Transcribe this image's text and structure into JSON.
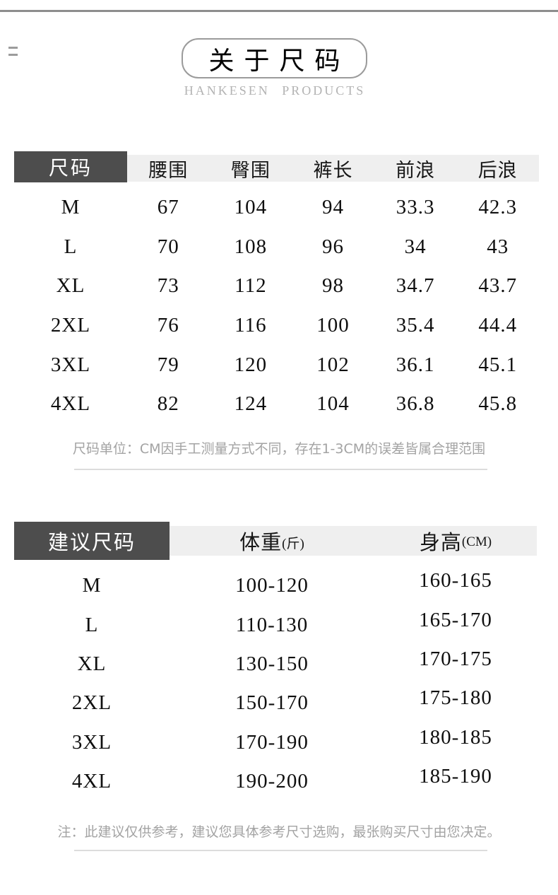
{
  "header": {
    "title": "关于尺码",
    "brand": "HANKESEN PRODUCTS"
  },
  "size_table": {
    "header": {
      "size": "尺码",
      "columns": [
        "腰围",
        "臀围",
        "裤长",
        "前浪",
        "后浪"
      ]
    },
    "rows": [
      {
        "size": "M",
        "values": [
          "67",
          "104",
          "94",
          "33.3",
          "42.3"
        ]
      },
      {
        "size": "L",
        "values": [
          "70",
          "108",
          "96",
          "34",
          "43"
        ]
      },
      {
        "size": "XL",
        "values": [
          "73",
          "112",
          "98",
          "34.7",
          "43.7"
        ]
      },
      {
        "size": "2XL",
        "values": [
          "76",
          "116",
          "100",
          "35.4",
          "44.4"
        ]
      },
      {
        "size": "3XL",
        "values": [
          "79",
          "120",
          "102",
          "36.1",
          "45.1"
        ]
      },
      {
        "size": "4XL",
        "values": [
          "82",
          "124",
          "104",
          "36.8",
          "45.8"
        ]
      }
    ],
    "note": "尺码单位：CM因手工测量方式不同，存在1-3CM的误差皆属合理范围"
  },
  "suggest_table": {
    "header": {
      "size": "建议尺码",
      "weight_main": "体重",
      "weight_unit": "(斤)",
      "height_main": "身高",
      "height_unit": "(CM)"
    },
    "rows": [
      {
        "size": "M",
        "weight": "100-120",
        "height": "160-165"
      },
      {
        "size": "L",
        "weight": "110-130",
        "height": "165-170"
      },
      {
        "size": "XL",
        "weight": "130-150",
        "height": "170-175"
      },
      {
        "size": "2XL",
        "weight": "150-170",
        "height": "175-180"
      },
      {
        "size": "3XL",
        "weight": "170-190",
        "height": "180-185"
      },
      {
        "size": "4XL",
        "weight": "190-200",
        "height": "185-190"
      }
    ],
    "note": "注：此建议仅供参考，建议您具体参考尺寸选购，最张购买尺寸由您决定。"
  },
  "colors": {
    "header_dark": "#4d4d4d",
    "header_light_strip": "#efefef",
    "note_gray": "#a3a3a3",
    "top_line": "#8e8e8e",
    "title_border": "#9b9b9b"
  }
}
